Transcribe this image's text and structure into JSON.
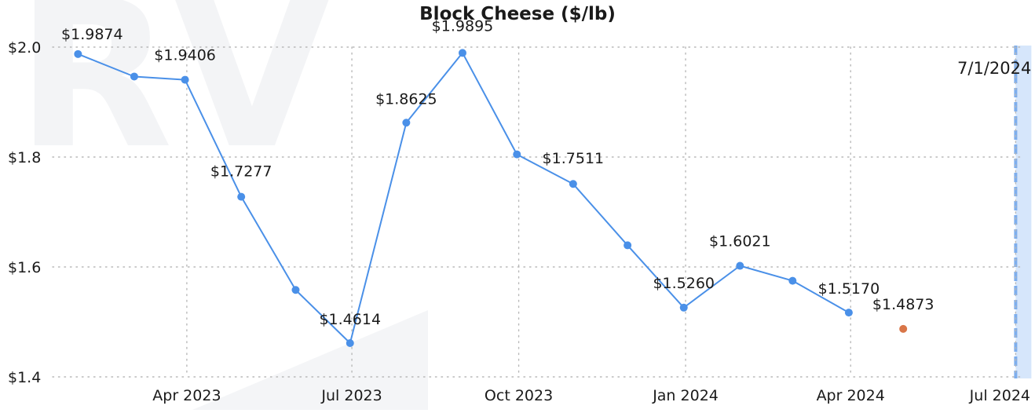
{
  "chart_data": {
    "type": "line",
    "title": "Block Cheese ($/lb)",
    "xlabel": "",
    "ylabel": "",
    "ylim": [
      1.4,
      2.0
    ],
    "x_range": [
      "2023-01-17",
      "2024-07-03"
    ],
    "y_ticks": [
      {
        "value": 1.4,
        "label": "$1.4"
      },
      {
        "value": 1.6,
        "label": "$1.6"
      },
      {
        "value": 1.8,
        "label": "$1.8"
      },
      {
        "value": 2.0,
        "label": "$2.0"
      }
    ],
    "x_ticks": [
      {
        "date": "2023-04-01",
        "label": "Apr 2023"
      },
      {
        "date": "2023-07-01",
        "label": "Jul 2023"
      },
      {
        "date": "2023-10-01",
        "label": "Oct 2023"
      },
      {
        "date": "2024-01-01",
        "label": "Jan 2024"
      },
      {
        "date": "2024-04-01",
        "label": "Apr 2024"
      },
      {
        "date": "2024-07-01",
        "label": "Jul 2024"
      }
    ],
    "grid": true,
    "series": [
      {
        "color": "#4a90e8",
        "points": [
          {
            "x": "2023-01-31",
            "y": 1.9874,
            "label": "$1.9874"
          },
          {
            "x": "2023-03-03",
            "y": 1.9465
          },
          {
            "x": "2023-03-31",
            "y": 1.9406,
            "label": "$1.9406"
          },
          {
            "x": "2023-05-01",
            "y": 1.7277,
            "label": "$1.7277"
          },
          {
            "x": "2023-05-31",
            "y": 1.5582
          },
          {
            "x": "2023-06-30",
            "y": 1.4614,
            "label": "$1.4614"
          },
          {
            "x": "2023-07-31",
            "y": 1.8625,
            "label": "$1.8625"
          },
          {
            "x": "2023-08-31",
            "y": 1.9895,
            "label": "$1.9895"
          },
          {
            "x": "2023-09-30",
            "y": 1.8049
          },
          {
            "x": "2023-10-31",
            "y": 1.7511,
            "label": "$1.7511"
          },
          {
            "x": "2023-11-30",
            "y": 1.6394
          },
          {
            "x": "2023-12-31",
            "y": 1.526,
            "label": "$1.5260"
          },
          {
            "x": "2024-01-31",
            "y": 1.6021,
            "label": "$1.6021"
          },
          {
            "x": "2024-02-29",
            "y": 1.5748
          },
          {
            "x": "2024-03-31",
            "y": 1.517,
            "label": "$1.5170"
          }
        ]
      },
      {
        "color": "#d97648",
        "points": [
          {
            "x": "2024-04-30",
            "y": 1.4873,
            "label": "$1.4873"
          }
        ]
      }
    ],
    "annotations": [
      {
        "type": "vertical-line",
        "x": "2024-07-01",
        "label": "7/1/2024",
        "color": "#7eaeed",
        "band_color": "#d6e6fb"
      }
    ],
    "background_watermark": "RV"
  }
}
